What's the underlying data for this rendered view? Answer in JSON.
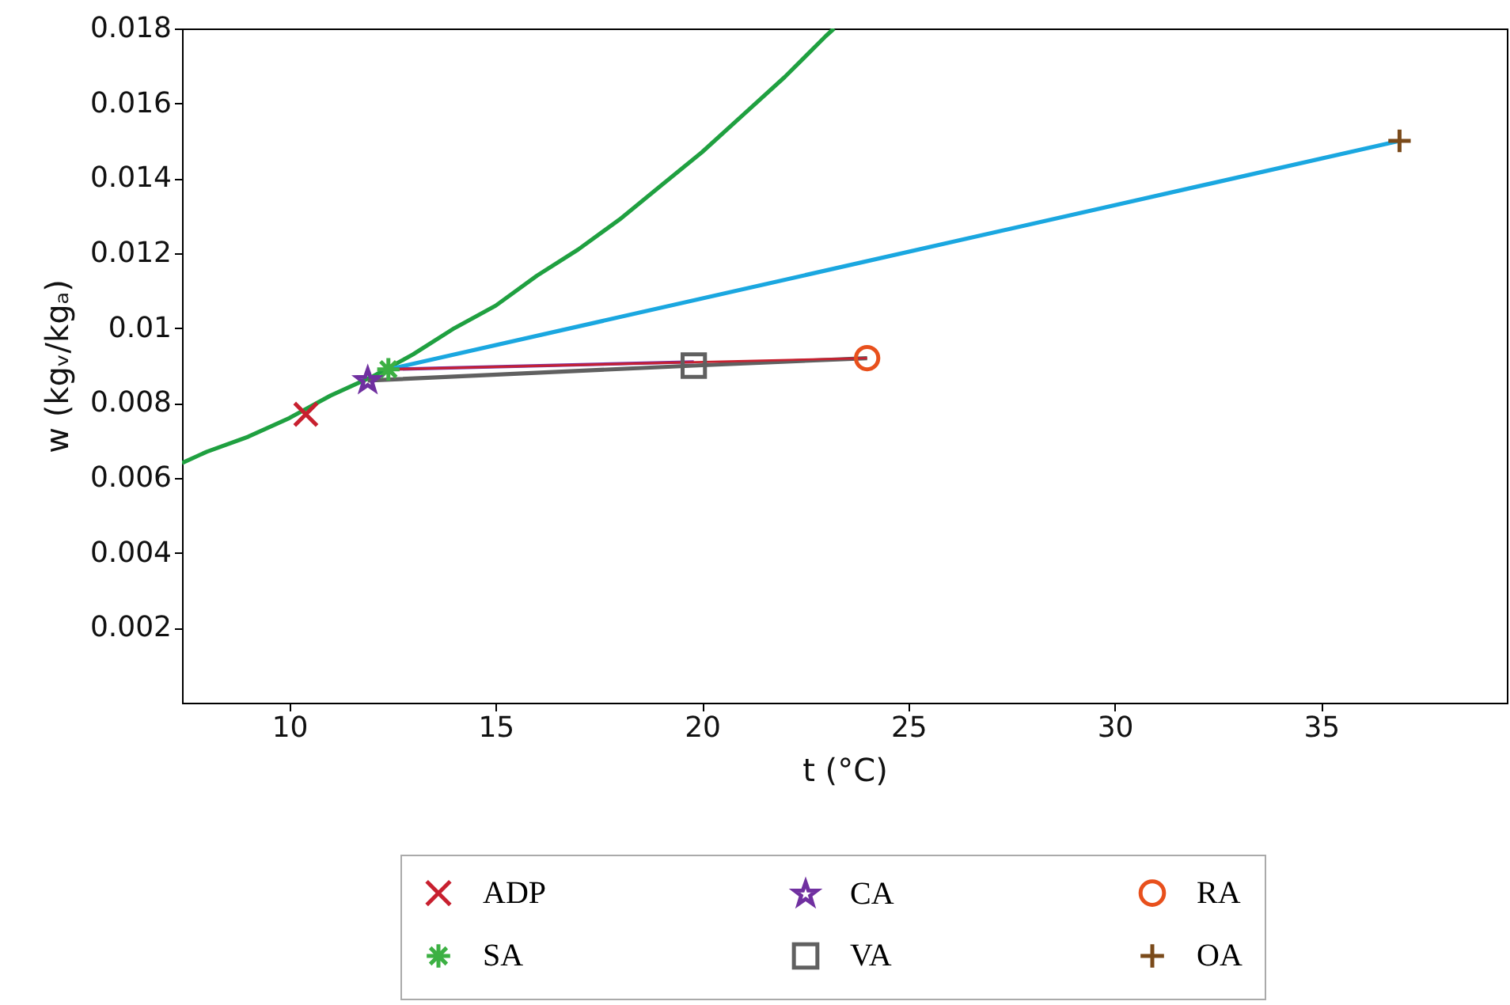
{
  "chart_data": {
    "type": "line",
    "xlabel": "t (°C)",
    "ylabel": "w (kgᵥ/kgₐ)",
    "xlim": [
      7.4,
      39.5
    ],
    "xticks": [
      10,
      15,
      20,
      25,
      30,
      35
    ],
    "ylim": [
      0,
      0.018
    ],
    "yticks": [
      0.002,
      0.004,
      0.006,
      0.008,
      0.01,
      0.012,
      0.014,
      0.016,
      0.018
    ],
    "grid": false,
    "legend": "bottom",
    "series": [
      {
        "color": "#1fa040",
        "x": [
          7.4,
          8,
          9,
          10,
          11,
          12,
          13,
          14,
          15,
          16,
          17,
          18,
          19,
          20,
          21,
          22,
          23,
          23.2
        ],
        "values": [
          0.0064,
          0.0067,
          0.0071,
          0.0076,
          0.0082,
          0.0087,
          0.0093,
          0.01,
          0.0106,
          0.0114,
          0.0121,
          0.0129,
          0.0138,
          0.0147,
          0.0157,
          0.0167,
          0.0178,
          0.018
        ]
      },
      {
        "color": "#1aa7e0",
        "x": [
          12.4,
          36.9
        ],
        "values": [
          0.0089,
          0.015
        ]
      },
      {
        "color": "#606060",
        "x": [
          11.9,
          19.8,
          24.0
        ],
        "values": [
          0.0086,
          0.009,
          0.0092
        ]
      },
      {
        "color": "#7a2ea0",
        "x": [
          12.4,
          19.8
        ],
        "values": [
          0.0089,
          0.0091
        ]
      },
      {
        "color": "#c8202f",
        "x": [
          12.4,
          24.0
        ],
        "values": [
          0.0089,
          0.0092
        ]
      },
      {
        "type": "scatter",
        "name": "ADP",
        "marker": "cross",
        "color": "#c8202f",
        "x": [
          10.4
        ],
        "values": [
          0.0077
        ]
      },
      {
        "type": "scatter",
        "name": "SA",
        "marker": "cross",
        "color": "#3cb043",
        "x": [
          12.4
        ],
        "values": [
          0.0089
        ]
      },
      {
        "type": "scatter",
        "name": "CA",
        "marker": "star",
        "color": "#7030a0",
        "x": [
          11.9
        ],
        "values": [
          0.0086
        ]
      },
      {
        "type": "scatter",
        "name": "VA",
        "marker": "square",
        "color": "#606060",
        "x": [
          19.8
        ],
        "values": [
          0.009
        ]
      },
      {
        "type": "scatter",
        "name": "RA",
        "marker": "circle",
        "color": "#e8501c",
        "x": [
          24.0
        ],
        "values": [
          0.0092
        ]
      },
      {
        "type": "scatter",
        "name": "OA",
        "marker": "cross",
        "color": "#7a4a1a",
        "x": [
          36.9
        ],
        "values": [
          0.015
        ]
      }
    ]
  }
}
